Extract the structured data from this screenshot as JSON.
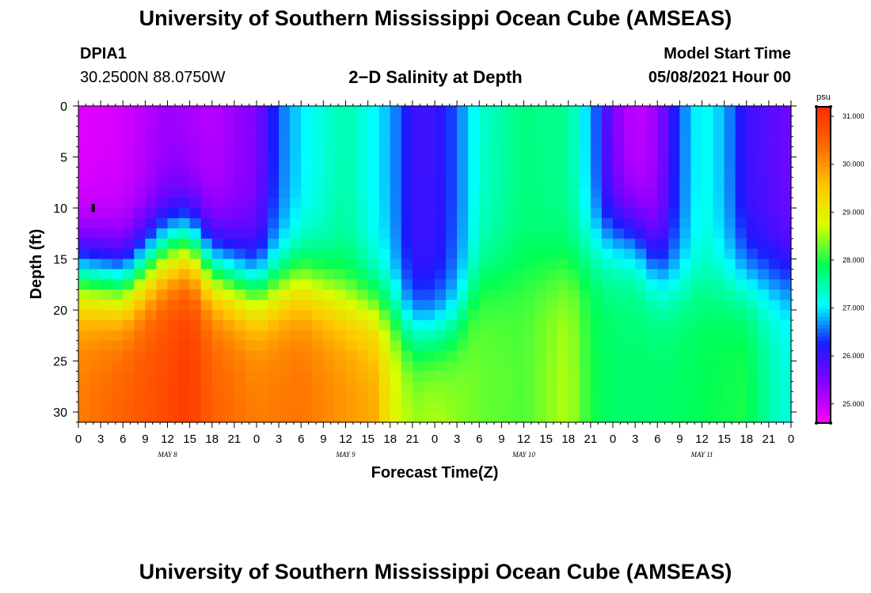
{
  "page": {
    "title": "University of Southern Mississippi Ocean Cube (AMSEAS)",
    "station_id": "DPIA1",
    "station_coords": "30.2500N  88.0750W",
    "model_start_label": "Model Start Time",
    "model_start_value": "05/08/2021 Hour 00",
    "footer_title": "University of Southern Mississippi Ocean Cube (AMSEAS)"
  },
  "colors": {
    "colorscale": [
      "#ff00ff",
      "#8a00ff",
      "#1a1aff",
      "#00ffff",
      "#00ff55",
      "#d8ff00",
      "#ffc800",
      "#ff6a00",
      "#ff2a00"
    ]
  },
  "chart_data": {
    "type": "heatmap",
    "title": "2−D Salinity at Depth",
    "xlabel": "Forecast Time(Z)",
    "ylabel": "Depth (ft)",
    "x_ticks": [
      "0",
      "3",
      "6",
      "9",
      "12",
      "15",
      "18",
      "21",
      "0",
      "3",
      "6",
      "9",
      "12",
      "15",
      "18",
      "21",
      "0",
      "3",
      "6",
      "9",
      "12",
      "15",
      "18",
      "21",
      "0",
      "3",
      "6",
      "9",
      "12",
      "15",
      "18",
      "21",
      "0"
    ],
    "day_labels": [
      {
        "label": "MAY 8",
        "center_hour": 12
      },
      {
        "label": "MAY 9",
        "center_hour": 36
      },
      {
        "label": "MAY 10",
        "center_hour": 60
      },
      {
        "label": "MAY 11",
        "center_hour": 84
      }
    ],
    "x_range_hours": [
      0,
      96
    ],
    "y_ticks": [
      0,
      5,
      10,
      15,
      20,
      25,
      30
    ],
    "ylim": [
      0,
      31
    ],
    "y_inverted": true,
    "colorbar": {
      "unit": "psu",
      "range": [
        24.6,
        31.2
      ],
      "ticks": [
        "25.000",
        "26.000",
        "27.000",
        "28.000",
        "29.000",
        "30.000",
        "31.000"
      ]
    },
    "surface_salinity": [
      [
        0,
        24.8
      ],
      [
        6,
        24.9
      ],
      [
        12,
        25.3
      ],
      [
        18,
        25.1
      ],
      [
        24,
        25.5
      ],
      [
        27,
        26.5
      ],
      [
        30,
        27.0
      ],
      [
        36,
        27.5
      ],
      [
        42,
        26.8
      ],
      [
        45,
        26.0
      ],
      [
        48,
        26.0
      ],
      [
        51,
        26.5
      ],
      [
        54,
        27.3
      ],
      [
        60,
        27.7
      ],
      [
        66,
        27.6
      ],
      [
        69,
        26.8
      ],
      [
        72,
        25.5
      ],
      [
        75,
        25.0
      ],
      [
        78,
        25.3
      ],
      [
        81,
        26.5
      ],
      [
        84,
        27.2
      ],
      [
        87,
        26.8
      ],
      [
        90,
        26.0
      ],
      [
        96,
        25.6
      ]
    ],
    "halocline_depth": [
      [
        0,
        16.5
      ],
      [
        6,
        17.5
      ],
      [
        12,
        14
      ],
      [
        15,
        13.5
      ],
      [
        18,
        16
      ],
      [
        24,
        18
      ],
      [
        30,
        17
      ],
      [
        36,
        19
      ],
      [
        42,
        20
      ],
      [
        45,
        22
      ],
      [
        48,
        22
      ],
      [
        51,
        21
      ],
      [
        54,
        17
      ],
      [
        60,
        16
      ],
      [
        66,
        16
      ],
      [
        69,
        14
      ],
      [
        72,
        13
      ],
      [
        75,
        13
      ],
      [
        78,
        16
      ],
      [
        81,
        17
      ],
      [
        84,
        17
      ],
      [
        90,
        17
      ],
      [
        96,
        17
      ]
    ],
    "bottom_salinity": [
      [
        0,
        30.2
      ],
      [
        6,
        30.5
      ],
      [
        12,
        30.8
      ],
      [
        15,
        31.0
      ],
      [
        18,
        30.5
      ],
      [
        24,
        30.2
      ],
      [
        30,
        30.3
      ],
      [
        36,
        30.0
      ],
      [
        40,
        29.8
      ],
      [
        42,
        29.0
      ],
      [
        45,
        28.5
      ],
      [
        48,
        28.6
      ],
      [
        54,
        28.3
      ],
      [
        60,
        28.2
      ],
      [
        66,
        28.6
      ],
      [
        69,
        28.0
      ],
      [
        72,
        27.8
      ],
      [
        78,
        27.8
      ],
      [
        84,
        27.9
      ],
      [
        90,
        28.0
      ],
      [
        93,
        27.5
      ],
      [
        96,
        27.2
      ]
    ],
    "marker": {
      "hour": 2,
      "depth_ft": 10
    }
  }
}
